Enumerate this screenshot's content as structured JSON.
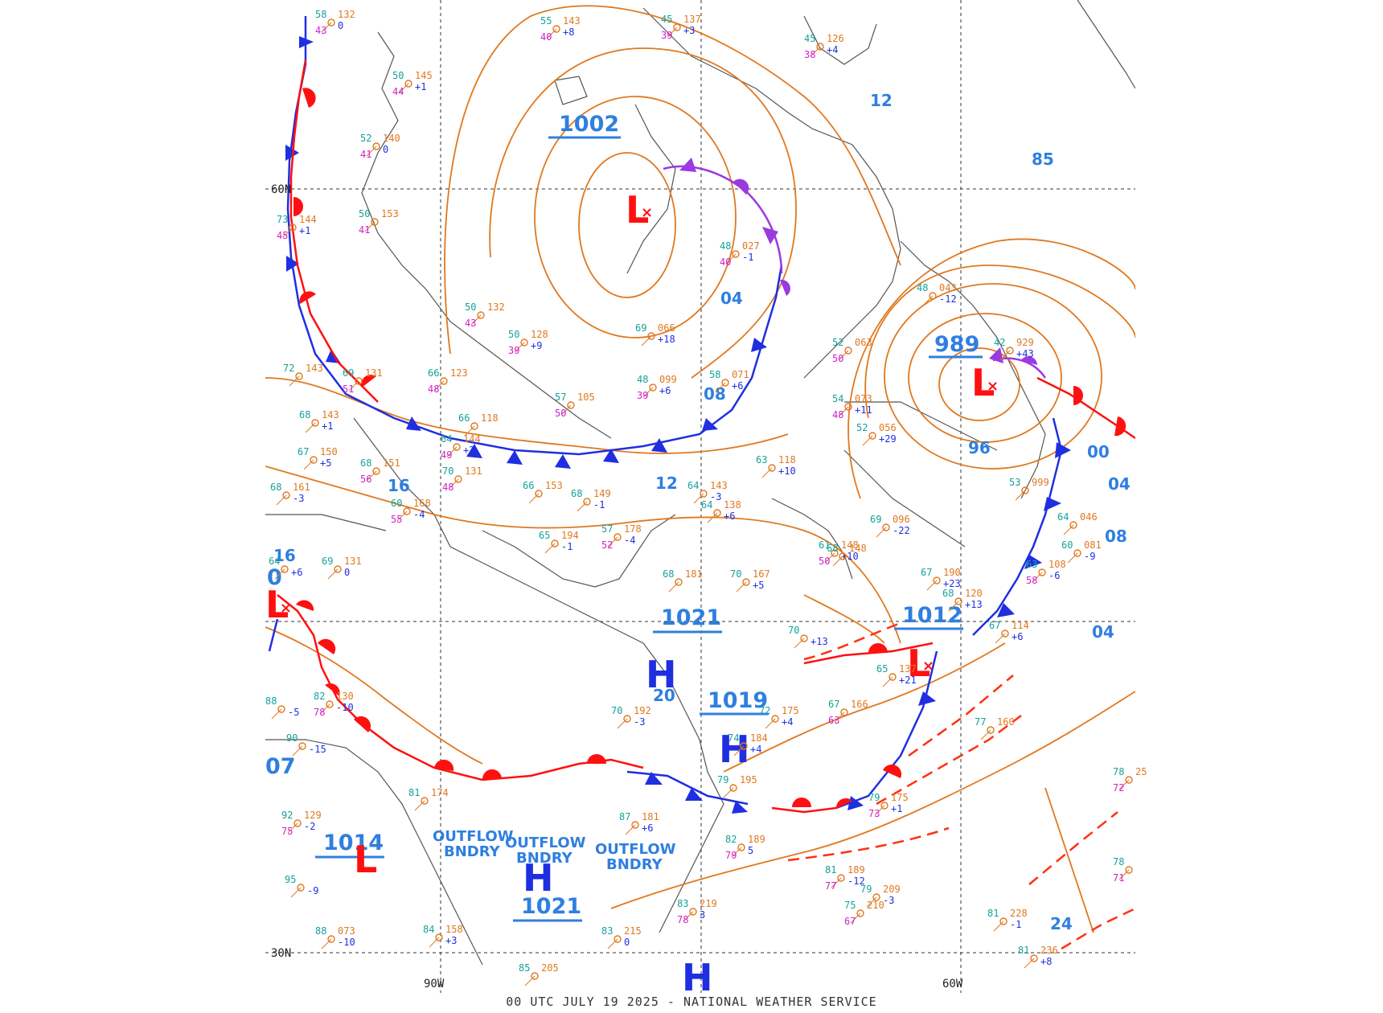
{
  "caption": "00 UTC JULY 19 2025 - NATIONAL WEATHER SERVICE",
  "colors": {
    "isobar": "#e07820",
    "cold_front": "#1f2fe0",
    "warm_front": "#ff1010",
    "occluded": "#9a3ae0",
    "label_blue": "#2f7fe0",
    "low_red": "#ff1010",
    "high_blue": "#1f2fe0",
    "coast": "#555555"
  },
  "grid_labels": {
    "lat_60n": "60N",
    "lat_30n": "30N",
    "lon_90w": "90W",
    "lon_60w": "60W"
  },
  "pressure_centers": [
    {
      "label": "1002"
    },
    {
      "label": "989"
    },
    {
      "label": "1021"
    },
    {
      "label": "1019"
    },
    {
      "label": "1012"
    },
    {
      "label": "1014"
    },
    {
      "label": "1021"
    }
  ],
  "isobar_labels": [
    "12",
    "04",
    "08",
    "12",
    "85",
    "96",
    "00",
    "04",
    "08",
    "16",
    "16",
    "04",
    "24",
    "20"
  ],
  "edge_labels": [
    "07",
    "0"
  ],
  "lows": [
    "L",
    "L",
    "L",
    "L",
    "L"
  ],
  "highs": [
    "H",
    "H",
    "H",
    "H"
  ],
  "boundaries": [
    {
      "line1": "OUTFLOW",
      "line2": "BNDRY"
    },
    {
      "line1": "OUTFLOW",
      "line2": "BNDRY"
    },
    {
      "line1": "OUTFLOW",
      "line2": "BNDRY"
    }
  ],
  "station_obs": [
    {
      "t": "58",
      "p": "132",
      "d": "43",
      "tend": "0"
    },
    {
      "t": "55",
      "p": "143",
      "d": "40",
      "tend": "+8"
    },
    {
      "t": "45",
      "p": "137",
      "d": "39",
      "tend": "+3"
    },
    {
      "t": "45",
      "p": "126",
      "d": "38",
      "tend": "+4"
    },
    {
      "t": "52",
      "p": "140",
      "d": "41",
      "tend": "0"
    },
    {
      "t": "50",
      "p": "145",
      "d": "44",
      "tend": "+1"
    },
    {
      "t": "50",
      "p": "153",
      "d": "41",
      "tend": ""
    },
    {
      "t": "73",
      "p": "144",
      "d": "45",
      "tend": "+1"
    },
    {
      "t": "48",
      "p": "027",
      "d": "40",
      "tend": "-1"
    },
    {
      "t": "50",
      "p": "132",
      "d": "43",
      "tend": ""
    },
    {
      "t": "50",
      "p": "128",
      "d": "39",
      "tend": "+9"
    },
    {
      "t": "69",
      "p": "066",
      "d": "",
      "tend": "+18"
    },
    {
      "t": "58",
      "p": "071",
      "d": "",
      "tend": "+6"
    },
    {
      "t": "48",
      "p": "099",
      "d": "39",
      "tend": "+6"
    },
    {
      "t": "52",
      "p": "063",
      "d": "50",
      "tend": ""
    },
    {
      "t": "54",
      "p": "073",
      "d": "48",
      "tend": "+11"
    },
    {
      "t": "52",
      "p": "056",
      "d": "",
      "tend": "+29"
    },
    {
      "t": "69",
      "p": "131",
      "d": "51",
      "tend": ""
    },
    {
      "t": "66",
      "p": "123",
      "d": "48",
      "tend": ""
    },
    {
      "t": "72",
      "p": "143",
      "d": "",
      "tend": ""
    },
    {
      "t": "68",
      "p": "143",
      "d": "",
      "tend": "+1"
    },
    {
      "t": "66",
      "p": "118",
      "d": "",
      "tend": ""
    },
    {
      "t": "64",
      "p": "144",
      "d": "49",
      "tend": "+2"
    },
    {
      "t": "57",
      "p": "105",
      "d": "50",
      "tend": ""
    },
    {
      "t": "63",
      "p": "118",
      "d": "",
      "tend": "+10"
    },
    {
      "t": "70",
      "p": "131",
      "d": "48",
      "tend": ""
    },
    {
      "t": "66",
      "p": "153",
      "d": "",
      "tend": ""
    },
    {
      "t": "68",
      "p": "149",
      "d": "",
      "tend": "-1"
    },
    {
      "t": "64",
      "p": "143",
      "d": "",
      "tend": "-3"
    },
    {
      "t": "64",
      "p": "138",
      "d": "",
      "tend": "+6"
    },
    {
      "t": "67",
      "p": "150",
      "d": "",
      "tend": "+5"
    },
    {
      "t": "68",
      "p": "151",
      "d": "56",
      "tend": ""
    },
    {
      "t": "60",
      "p": "168",
      "d": "55",
      "tend": "-4"
    },
    {
      "t": "65",
      "p": "194",
      "d": "",
      "tend": "-1"
    },
    {
      "t": "57",
      "p": "178",
      "d": "52",
      "tend": "-4"
    },
    {
      "t": "68",
      "p": "181",
      "d": "",
      "tend": ""
    },
    {
      "t": "70",
      "p": "167",
      "d": "",
      "tend": "+5"
    },
    {
      "t": "61",
      "p": "148",
      "d": "50",
      "tend": "+10"
    },
    {
      "t": "68",
      "p": "120",
      "d": "",
      "tend": "+13"
    },
    {
      "t": "67",
      "p": "114",
      "d": "",
      "tend": "+6"
    },
    {
      "t": "70",
      "p": "192",
      "d": "",
      "tend": "-3"
    },
    {
      "t": "72",
      "p": "175",
      "d": "",
      "tend": "+4"
    },
    {
      "t": "67",
      "p": "166",
      "d": "63",
      "tend": ""
    },
    {
      "t": "77",
      "p": "160",
      "d": "",
      "tend": ""
    },
    {
      "t": "79",
      "p": "175",
      "d": "73",
      "tend": "+1"
    },
    {
      "t": "79",
      "p": "195",
      "d": "",
      "tend": ""
    },
    {
      "t": "82",
      "p": "189",
      "d": "79",
      "tend": "5"
    },
    {
      "t": "81",
      "p": "189",
      "d": "77",
      "tend": "-12"
    },
    {
      "t": "79",
      "p": "209",
      "d": "",
      "tend": "-3"
    },
    {
      "t": "75",
      "p": "210",
      "d": "67",
      "tend": ""
    },
    {
      "t": "83",
      "p": "219",
      "d": "78",
      "tend": "3"
    },
    {
      "t": "83",
      "p": "215",
      "d": "",
      "tend": "0"
    },
    {
      "t": "81",
      "p": "228",
      "d": "",
      "tend": "-1"
    },
    {
      "t": "81",
      "p": "236",
      "d": "",
      "tend": "+8"
    },
    {
      "t": "78",
      "p": "25",
      "d": "72",
      "tend": ""
    },
    {
      "t": "78",
      "p": "",
      "d": "71",
      "tend": ""
    },
    {
      "t": "42",
      "p": "929",
      "d": "",
      "tend": "+43"
    },
    {
      "t": "53",
      "p": "999",
      "d": "",
      "tend": ""
    },
    {
      "t": "64",
      "p": "046",
      "d": "",
      "tend": ""
    },
    {
      "t": "60",
      "p": "081",
      "d": "",
      "tend": "-9"
    },
    {
      "t": "63",
      "p": "108",
      "d": "58",
      "tend": "-6"
    },
    {
      "t": "69",
      "p": "096",
      "d": "",
      "tend": "-22"
    },
    {
      "t": "67",
      "p": "190",
      "d": "",
      "tend": "+23"
    },
    {
      "t": "65",
      "p": "137",
      "d": "",
      "tend": "+21"
    },
    {
      "t": "74",
      "p": "184",
      "d": "",
      "tend": "+4"
    },
    {
      "t": "81",
      "p": "174",
      "d": "",
      "tend": ""
    },
    {
      "t": "87",
      "p": "181",
      "d": "",
      "tend": "+6"
    },
    {
      "t": "85",
      "p": "205",
      "d": "",
      "tend": ""
    },
    {
      "t": "88",
      "p": "073",
      "d": "",
      "tend": "-10"
    },
    {
      "t": "92",
      "p": "129",
      "d": "75",
      "tend": "-2"
    },
    {
      "t": "82",
      "p": "130",
      "d": "78",
      "tend": "-10"
    },
    {
      "t": "95",
      "p": "",
      "d": "",
      "tend": "-9"
    },
    {
      "t": "84",
      "p": "158",
      "d": "",
      "tend": "+3"
    },
    {
      "t": "90",
      "p": "",
      "d": "",
      "tend": "-15"
    },
    {
      "t": "88",
      "p": "",
      "d": "",
      "tend": "-5"
    },
    {
      "t": "68",
      "p": "161",
      "d": "",
      "tend": "-3"
    },
    {
      "t": "69",
      "p": "131",
      "d": "",
      "tend": "0"
    },
    {
      "t": "64",
      "p": "",
      "d": "",
      "tend": "+6"
    },
    {
      "t": "70",
      "p": "",
      "d": "",
      "tend": "+13"
    },
    {
      "t": "68",
      "p": "148",
      "d": "",
      "tend": ""
    },
    {
      "t": "48",
      "p": "043",
      "d": "",
      "tend": "-12"
    }
  ]
}
